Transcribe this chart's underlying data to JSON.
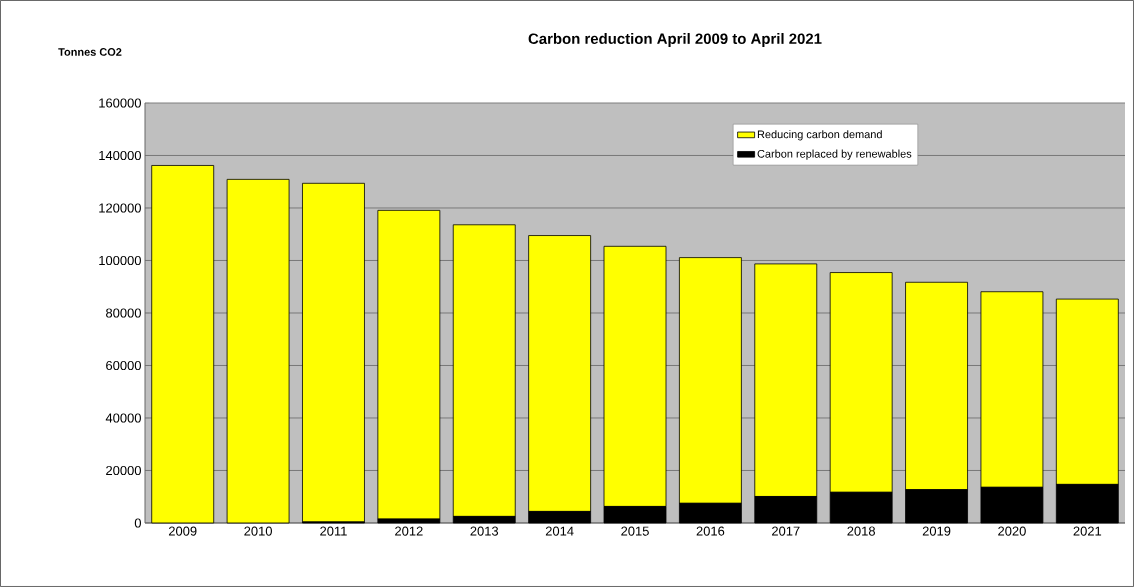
{
  "chart_data": {
    "type": "bar",
    "title": "Carbon reduction April 2009 to April 2021",
    "ylabel": "Tonnes CO2",
    "categories": [
      "2009",
      "2010",
      "2011",
      "2012",
      "2013",
      "2014",
      "2015",
      "2016",
      "2017",
      "2018",
      "2019",
      "2020",
      "2021"
    ],
    "stacked": true,
    "series": [
      {
        "name": "Carbon replaced by renewables",
        "color": "#000000",
        "values": [
          0,
          0,
          400,
          1500,
          2500,
          4400,
          6300,
          7500,
          10100,
          11700,
          12700,
          13600,
          14700
        ]
      },
      {
        "name": "Reducing carbon demand",
        "color": "#ffff00",
        "values": [
          136200,
          130900,
          129000,
          117600,
          111100,
          105100,
          99100,
          93600,
          88600,
          83700,
          79000,
          74500,
          70600
        ]
      }
    ],
    "ylim": [
      0,
      160000
    ],
    "yticks": [
      0,
      20000,
      40000,
      60000,
      80000,
      100000,
      120000,
      140000,
      160000
    ],
    "grid": "y",
    "legend": "top right"
  }
}
